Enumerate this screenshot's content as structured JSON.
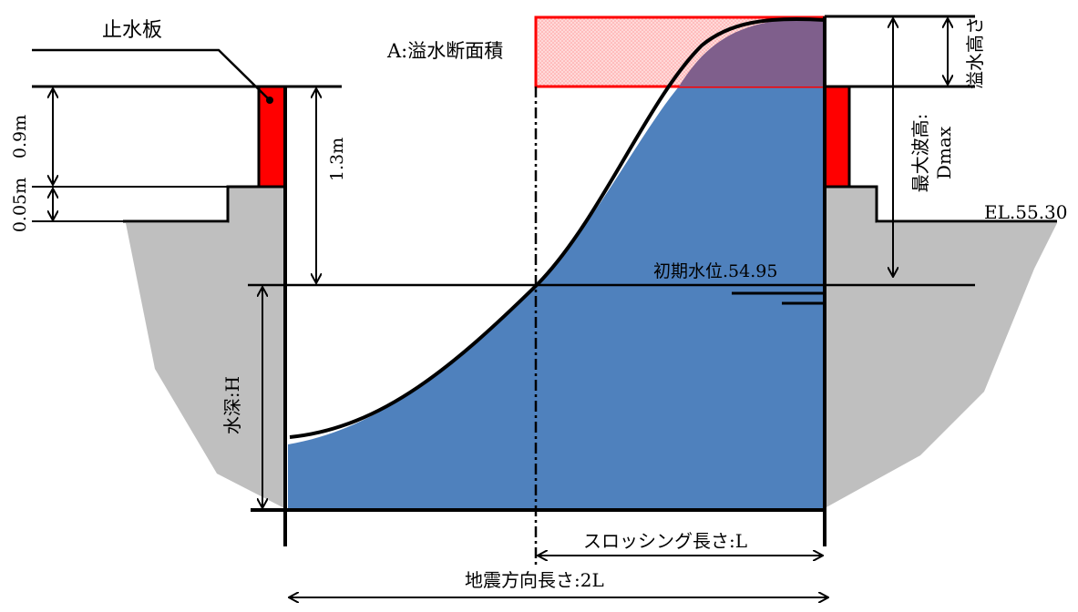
{
  "labels": {
    "stop_plate": "止水板",
    "overflow_area": "A:溢水断面積",
    "overflow_height": "溢水高さ",
    "max_wave_height_line1": "最大波高:",
    "max_wave_height_line2": "Dmax",
    "el_top": "EL.55.30",
    "initial_water_level": "初期水位.54.95",
    "dim_09": "0.9m",
    "dim_005": "0.05m",
    "dim_13": "1.3m",
    "water_depth": "水深:H",
    "sloshing_length": "スロッシング長さ:L",
    "seismic_length": "地震方向長さ:2L"
  },
  "colors": {
    "water": "#4f81bd",
    "ground": "#bfbfbf",
    "stop_plate": "#ff0000",
    "overflow_border": "#ff0000",
    "overflow_fill": "#ffd6d6",
    "overlap": "#7f5f8c",
    "line": "#000000"
  }
}
